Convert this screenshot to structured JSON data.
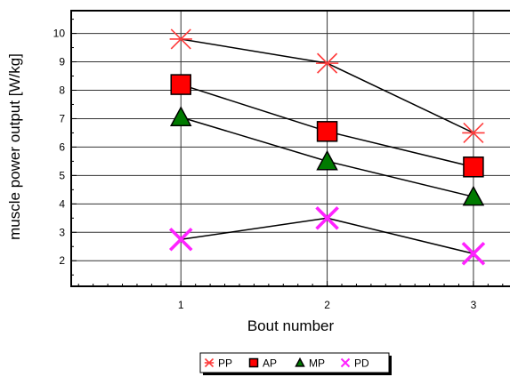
{
  "chart_data": {
    "type": "line",
    "xlabel": "Bout number",
    "ylabel": "muscle power output [W/kg]",
    "x": [
      1,
      2,
      3
    ],
    "xlim": [
      0.25,
      3.25
    ],
    "ylim": [
      1.1,
      10.8
    ],
    "yticks": [
      2,
      3,
      4,
      5,
      6,
      7,
      8,
      9,
      10
    ],
    "xticks": [
      1,
      2,
      3
    ],
    "grid": true,
    "legend_position": "bottom-center",
    "series": [
      {
        "name": "PP",
        "values": [
          9.8,
          8.95,
          6.5
        ],
        "marker": "asterisk",
        "marker_color": "#ff3b3b",
        "line_color": "#000000"
      },
      {
        "name": "AP",
        "values": [
          8.2,
          6.55,
          5.3
        ],
        "marker": "square",
        "marker_color": "#ff0000",
        "line_color": "#000000"
      },
      {
        "name": "MP",
        "values": [
          7.05,
          5.5,
          4.25
        ],
        "marker": "triangle",
        "marker_color": "#007a00",
        "line_color": "#000000"
      },
      {
        "name": "PD",
        "values": [
          2.75,
          3.5,
          2.25
        ],
        "marker": "cross",
        "marker_color": "#ff22ff",
        "line_color": "#000000"
      }
    ]
  }
}
